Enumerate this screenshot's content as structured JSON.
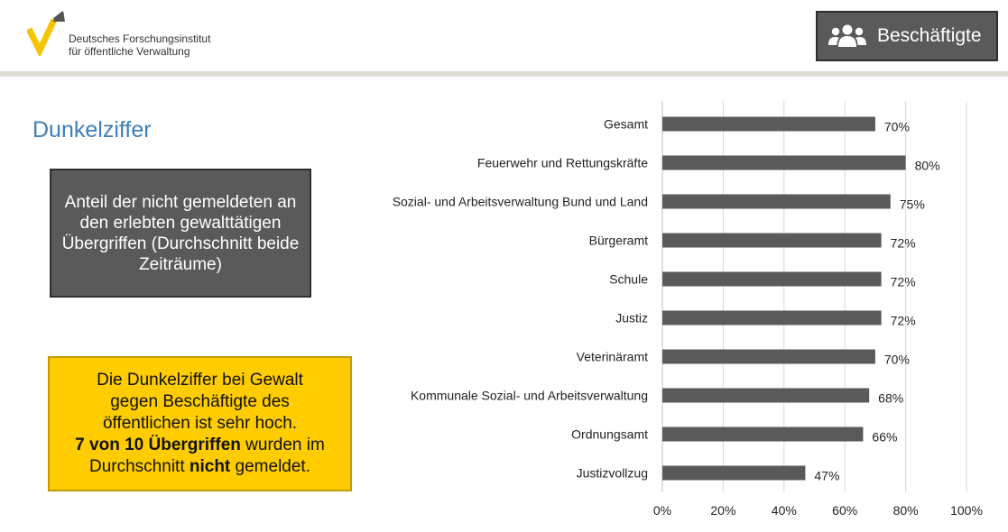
{
  "header": {
    "logo_line1": "Deutsches Forschungsinstitut",
    "logo_line2": "für öffentliche Verwaltung",
    "badge_label": "Beschäftigte",
    "badge_icon": "users-icon"
  },
  "page_title": "Dunkelziffer",
  "description": "Anteil der nicht gemeldeten an den erlebten gewalttätigen Übergriffen (Durchschnitt beide Zeiträume)",
  "note": {
    "line1": "Die Dunkelziffer bei Gewalt",
    "line2": "gegen Beschäftigte des",
    "line3": "öffentlichen ist sehr hoch.",
    "line4_bold": "7 von 10 Übergriffen",
    "line4_rest": " wurden im",
    "line5_pre": "Durchschnitt ",
    "line5_bold": "nicht",
    "line5_post": " gemeldet."
  },
  "colors": {
    "accent_blue": "#3f7fb8",
    "bar": "#5a5a5a",
    "note_bg": "#ffcc00",
    "box_dark": "#5a5a5a",
    "logo_yellow": "#f5c400"
  },
  "chart_data": {
    "type": "bar",
    "orientation": "horizontal",
    "categories": [
      "Gesamt",
      "Feuerwehr und Rettungskräfte",
      "Sozial- und Arbeitsverwaltung Bund und Land",
      "Bürgeramt",
      "Schule",
      "Justiz",
      "Veterinäramt",
      "Kommunale Sozial- und Arbeitsverwaltung",
      "Ordnungsamt",
      "Justizvollzug"
    ],
    "values": [
      70,
      80,
      75,
      72,
      72,
      72,
      70,
      68,
      66,
      47
    ],
    "value_labels": [
      "70%",
      "80%",
      "75%",
      "72%",
      "72%",
      "72%",
      "70%",
      "68%",
      "66%",
      "47%"
    ],
    "xlim": [
      0,
      100
    ],
    "xticks": [
      0,
      20,
      40,
      60,
      80,
      100
    ],
    "xtick_labels": [
      "0%",
      "20%",
      "40%",
      "60%",
      "80%",
      "100%"
    ],
    "grid": "vertical",
    "legend": "none"
  }
}
